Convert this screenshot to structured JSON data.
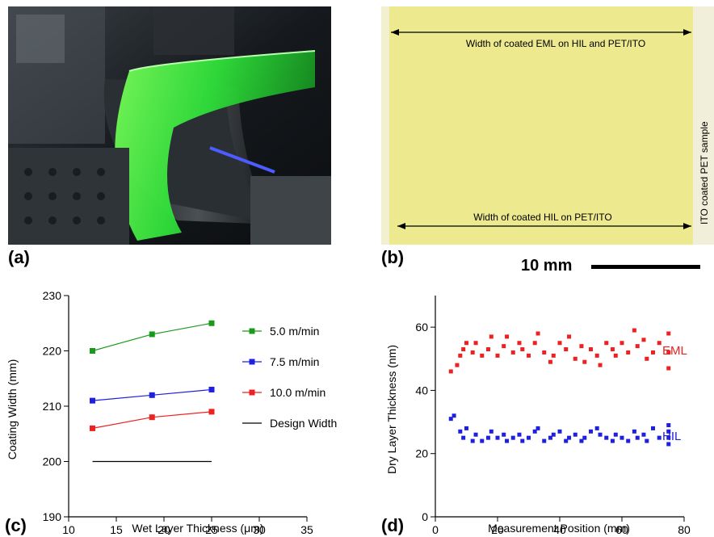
{
  "panels": {
    "a": {
      "label": "(a)"
    },
    "b": {
      "label": "(b)",
      "top_arrow_label": "Width of coated EML on HIL and PET/ITO",
      "bottom_arrow_label": "Width of coated HIL on PET/ITO",
      "side_label": "ITO coated PET sample",
      "scale_bar_label": "10 mm"
    },
    "c": {
      "label": "(c)"
    },
    "d": {
      "label": "(d)"
    }
  },
  "colors": {
    "green": "#1a9a1a",
    "blue": "#1f1fe0",
    "red": "#ee2020",
    "black": "#000000",
    "film": "#ece98e"
  },
  "chart_data": [
    {
      "type": "line",
      "panel": "c",
      "xlabel": "Wet Layer Thickness (μm)",
      "ylabel": "Coating Width (mm)",
      "xlim": [
        10,
        35
      ],
      "ylim": [
        190,
        230
      ],
      "xticks": [
        10,
        15,
        20,
        25,
        30,
        35
      ],
      "yticks": [
        190,
        200,
        210,
        220,
        230
      ],
      "legend_position": "right",
      "series": [
        {
          "name": "5.0 m/min",
          "color": "#1a9a1a",
          "marker": "square",
          "x": [
            12.5,
            18.75,
            25
          ],
          "y": [
            220,
            223,
            225
          ]
        },
        {
          "name": "7.5 m/min",
          "color": "#1f1fe0",
          "marker": "square",
          "x": [
            12.5,
            18.75,
            25
          ],
          "y": [
            211,
            212,
            213
          ]
        },
        {
          "name": "10.0 m/min",
          "color": "#ee2020",
          "marker": "square",
          "x": [
            12.5,
            18.75,
            25
          ],
          "y": [
            206,
            208,
            209
          ]
        },
        {
          "name": "Design Width",
          "color": "#000000",
          "marker": "none",
          "x": [
            12.5,
            25
          ],
          "y": [
            200,
            200
          ]
        }
      ]
    },
    {
      "type": "scatter",
      "panel": "d",
      "xlabel": "Measurement Position (mm)",
      "ylabel": "Dry Layer Thickness (nm)",
      "xlim": [
        0,
        80
      ],
      "ylim": [
        0,
        70
      ],
      "xticks": [
        0,
        20,
        40,
        60,
        80
      ],
      "yticks": [
        0,
        20,
        40,
        60
      ],
      "series": [
        {
          "name": "EML",
          "color": "#ee2020",
          "marker": "square",
          "x": [
            5,
            7,
            8,
            9,
            10,
            12,
            13,
            15,
            17,
            18,
            20,
            22,
            23,
            25,
            27,
            28,
            30,
            32,
            33,
            35,
            37,
            38,
            40,
            42,
            43,
            45,
            47,
            48,
            50,
            52,
            53,
            55,
            57,
            58,
            60,
            62,
            64,
            65,
            67,
            68,
            70,
            72,
            75,
            75,
            75
          ],
          "y": [
            46,
            48,
            51,
            53,
            55,
            52,
            55,
            51,
            53,
            57,
            51,
            54,
            57,
            52,
            55,
            53,
            51,
            55,
            58,
            52,
            49,
            51,
            55,
            53,
            57,
            50,
            54,
            49,
            53,
            51,
            48,
            55,
            53,
            51,
            55,
            52,
            59,
            54,
            56,
            50,
            52,
            55,
            47,
            52,
            58
          ]
        },
        {
          "name": "HIL",
          "color": "#1f1fe0",
          "marker": "square",
          "x": [
            5,
            6,
            8,
            9,
            10,
            12,
            13,
            15,
            17,
            18,
            20,
            22,
            23,
            25,
            27,
            28,
            30,
            32,
            33,
            35,
            37,
            38,
            40,
            42,
            43,
            45,
            47,
            48,
            50,
            52,
            53,
            55,
            57,
            58,
            60,
            62,
            64,
            65,
            67,
            68,
            70,
            72,
            75,
            75,
            75,
            75
          ],
          "y": [
            31,
            32,
            27,
            25,
            28,
            24,
            26,
            24,
            25,
            27,
            25,
            26,
            24,
            25,
            26,
            24,
            25,
            27,
            28,
            24,
            25,
            26,
            27,
            24,
            25,
            26,
            24,
            25,
            27,
            28,
            26,
            25,
            24,
            26,
            25,
            24,
            27,
            25,
            26,
            24,
            28,
            25,
            23,
            25,
            27,
            29
          ]
        }
      ]
    }
  ]
}
